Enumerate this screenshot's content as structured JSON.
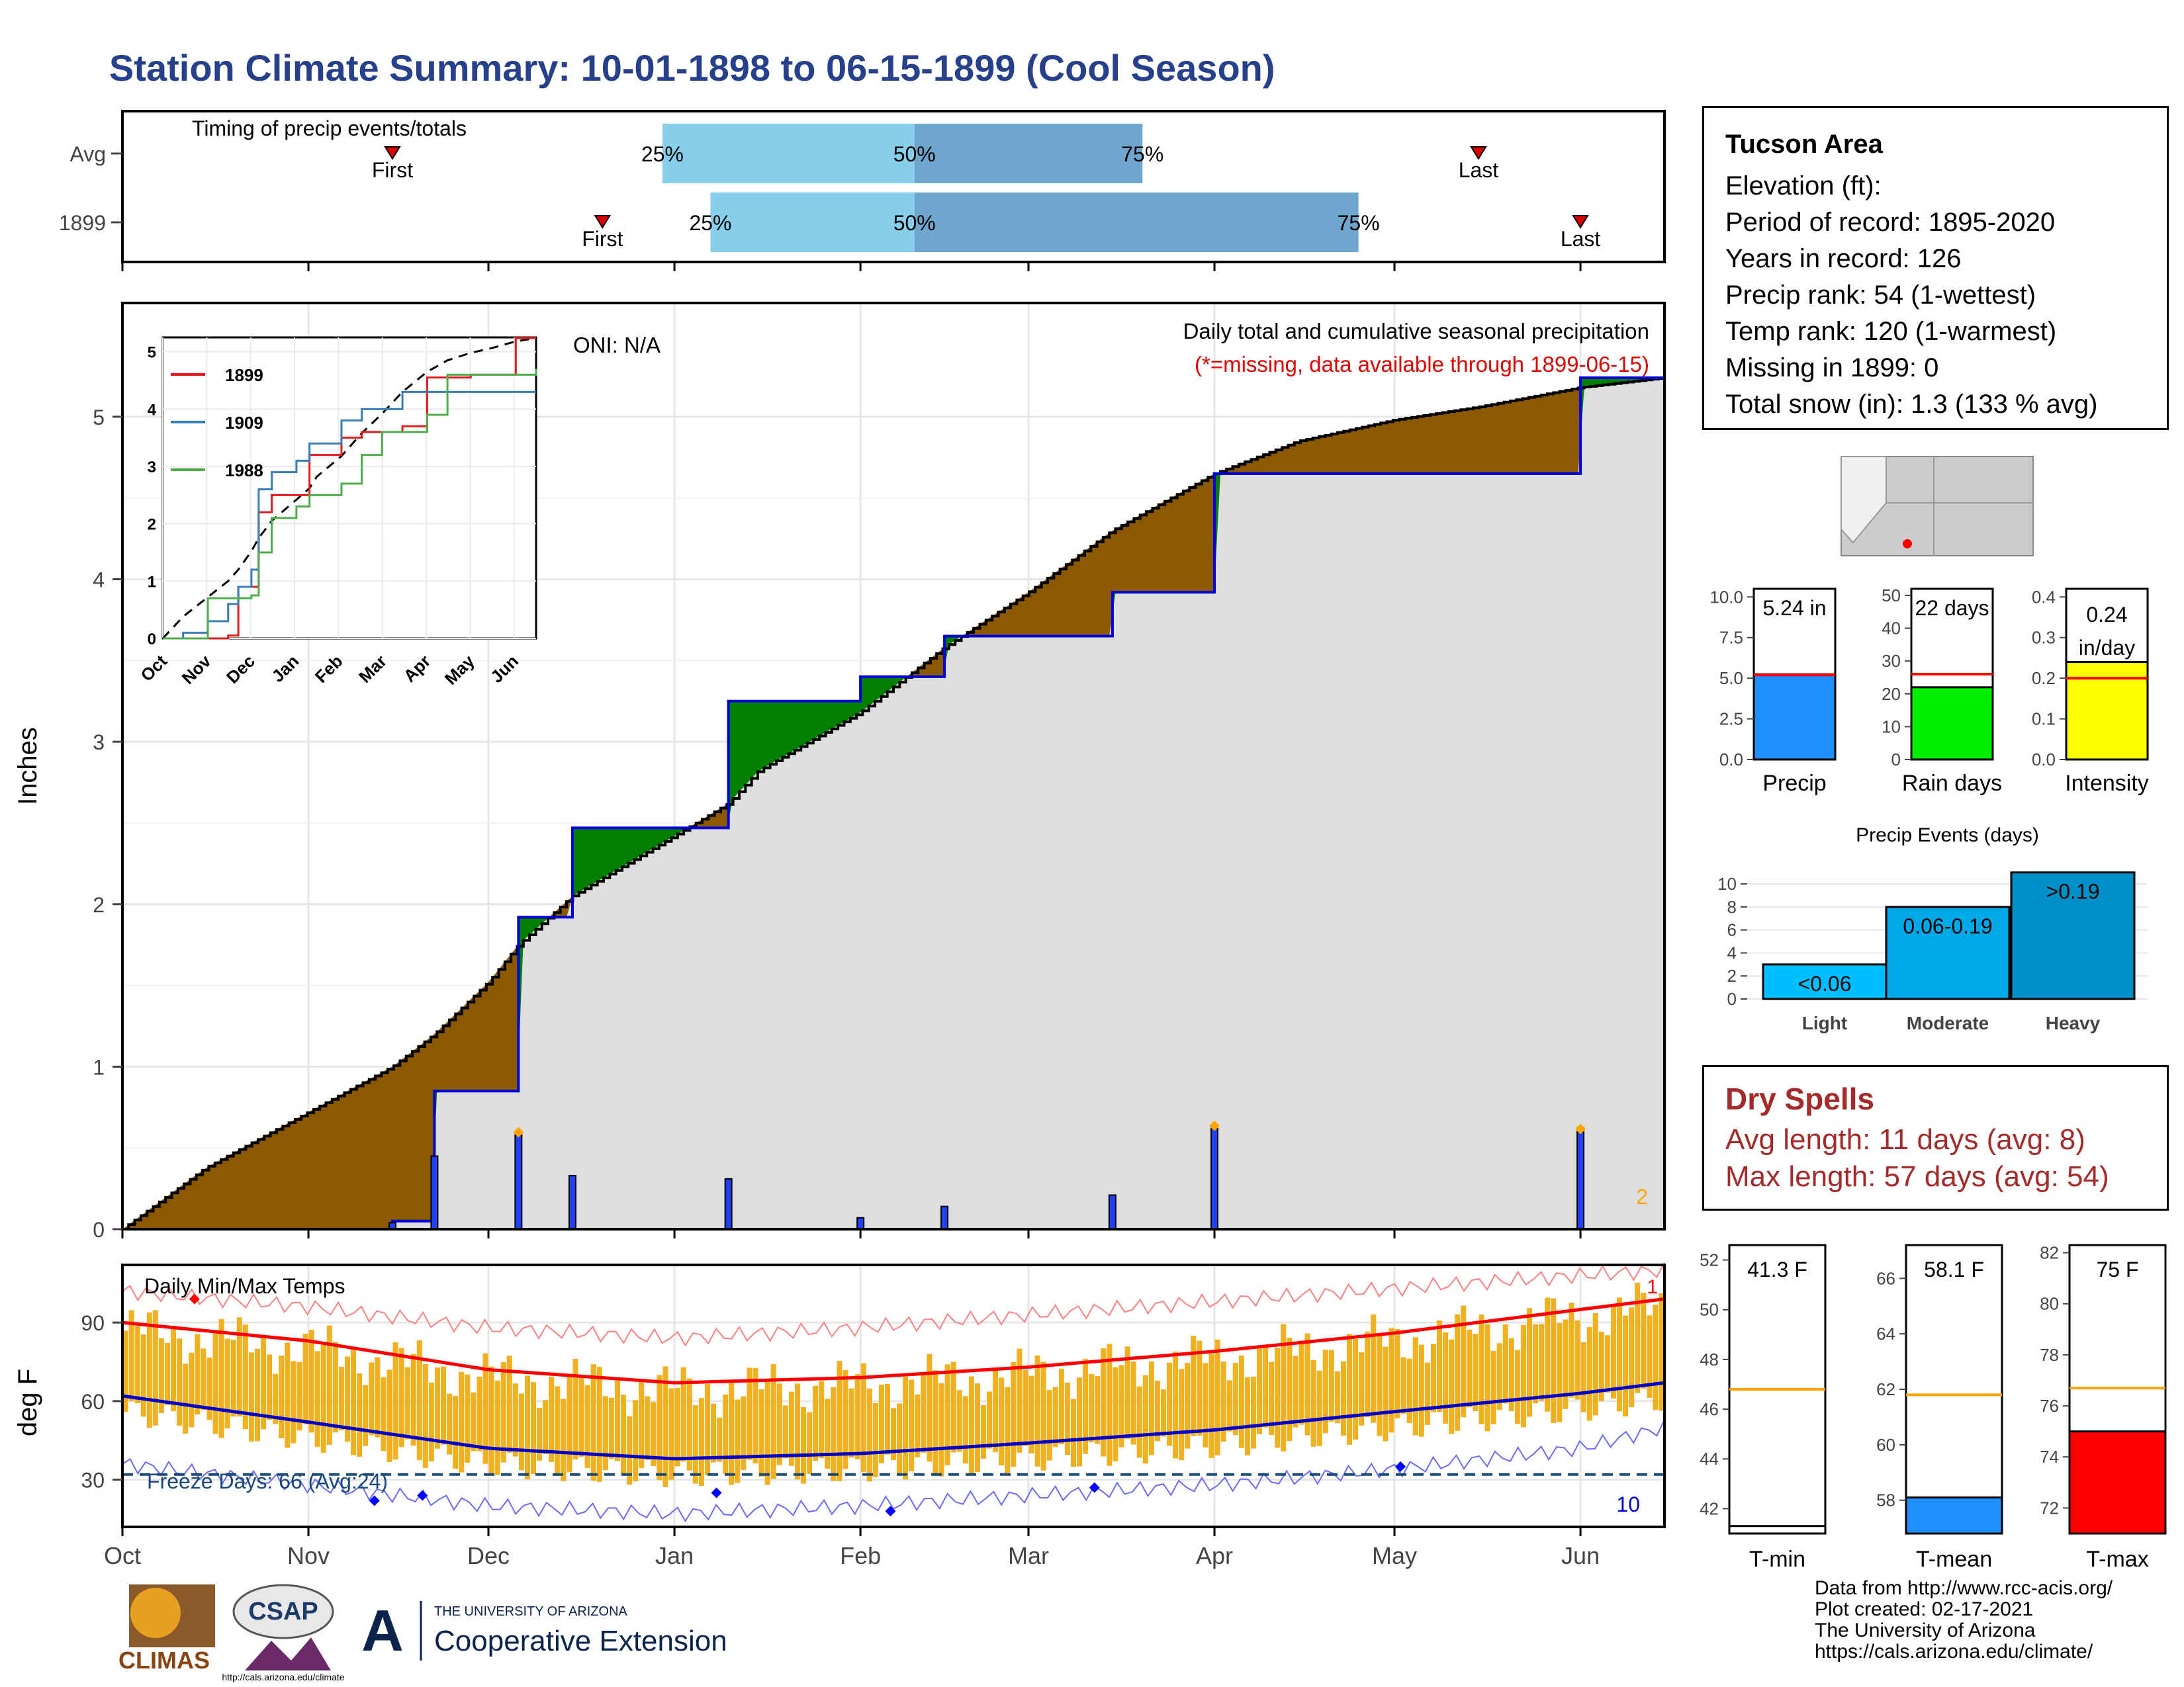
{
  "title": "Station Climate Summary: 10-01-1898 to 06-15-1899 (Cool Season)",
  "timing": {
    "label": "Timing of precip events/totals",
    "rows": [
      {
        "name": "Avg",
        "first": "First",
        "last": "Last",
        "p25": "25%",
        "p50": "50%",
        "p75": "75%"
      },
      {
        "name": "1899",
        "first": "First",
        "last": "Last",
        "p25": "25%",
        "p50": "50%",
        "p75": "75%"
      }
    ]
  },
  "station": {
    "name": "Tucson Area",
    "lines": [
      "Elevation (ft):",
      "Period of record: 1895-2020",
      "Years in record: 126",
      "Precip rank: 54 (1-wettest)",
      "Temp rank: 120 (1-warmest)",
      "Missing in 1899: 0",
      "Total snow (in): 1.3 (133 % avg)"
    ]
  },
  "precip_panel": {
    "ylabel": "Inches",
    "yticks": [
      "0",
      "1",
      "2",
      "3",
      "4",
      "5"
    ],
    "oni": "ONI: N/A",
    "legend_title": "Daily total and cumulative seasonal precipitation",
    "missing_note": "(*=missing, data available through 1899-06-15)",
    "corner_count": "2"
  },
  "inset": {
    "series": [
      "1899",
      "1909",
      "1988"
    ],
    "colors": [
      "#e41a1c",
      "#377eb8",
      "#4daf4a"
    ],
    "yticks": [
      "0",
      "1",
      "2",
      "3",
      "4",
      "5"
    ],
    "months": [
      "Oct",
      "Nov",
      "Dec",
      "Jan",
      "Feb",
      "Mar",
      "Apr",
      "May",
      "Jun"
    ]
  },
  "temp_panel": {
    "label": "Daily Min/Max Temps",
    "ylabel": "deg F",
    "yticks": [
      "30",
      "60",
      "90"
    ],
    "freeze": "Freeze Days: 66 (Avg:24)",
    "count_top": "1",
    "count_bottom": "10"
  },
  "months": [
    "Oct",
    "Nov",
    "Dec",
    "Jan",
    "Feb",
    "Mar",
    "Apr",
    "May",
    "Jun"
  ],
  "mini_bars": [
    {
      "value_label": "5.24 in",
      "name": "Precip",
      "ticks": [
        "0.0",
        "2.5",
        "5.0",
        "7.5",
        "10.0"
      ],
      "color": "#1e90ff"
    },
    {
      "value_label": "22 days",
      "name": "Rain days",
      "ticks": [
        "0",
        "10",
        "20",
        "30",
        "40",
        "50"
      ],
      "color": "#00ee00"
    },
    {
      "value_label": "0.24 in/day",
      "name": "Intensity",
      "ticks": [
        "0.0",
        "0.1",
        "0.2",
        "0.3",
        "0.4"
      ],
      "color": "#ffff00"
    }
  ],
  "events": {
    "title": "Precip Events (days)",
    "ticks": [
      "0",
      "2",
      "4",
      "6",
      "8",
      "10"
    ],
    "bars": [
      {
        "label": "<0.06",
        "name": "Light",
        "color": "#00bfff"
      },
      {
        "label": "0.06-0.19",
        "name": "Moderate",
        "color": "#00a8e8"
      },
      {
        "label": ">0.19",
        "name": "Heavy",
        "color": "#0090c8"
      }
    ]
  },
  "dry_spells": {
    "title": "Dry Spells",
    "avg": "Avg length: 11 days (avg: 8)",
    "max": "Max length: 57 days (avg: 54)"
  },
  "temp_bars": [
    {
      "value_label": "41.3 F",
      "name": "T-min",
      "ticks": [
        "42",
        "44",
        "46",
        "48",
        "50",
        "52"
      ],
      "color": "#ffffff"
    },
    {
      "value_label": "58.1 F",
      "name": "T-mean",
      "ticks": [
        "58",
        "60",
        "62",
        "64",
        "66"
      ],
      "color": "#1e90ff"
    },
    {
      "value_label": "75 F",
      "name": "T-max",
      "ticks": [
        "72",
        "74",
        "76",
        "78",
        "80",
        "82"
      ],
      "color": "#ff0000"
    }
  ],
  "logos": {
    "climas": "CLIMAS",
    "csap": "CSAP",
    "csap_url": "http://cals.arizona.edu/climate",
    "ua_top": "THE UNIVERSITY OF ARIZONA",
    "ua_main": "Cooperative Extension"
  },
  "credits": [
    "Data from http://www.rcc-acis.org/",
    "Plot created: 02-17-2021",
    "The University of Arizona",
    "https://cals.arizona.edu/climate/"
  ],
  "chart_data": [
    {
      "type": "bar",
      "title": "Timing of precip events/totals",
      "categories": [
        "Avg",
        "1899"
      ],
      "series": [
        {
          "name": "First",
          "values": [
            "1898-11-15",
            "1898-12-20"
          ]
        },
        {
          "name": "25%",
          "values": [
            "1898-12-30",
            "1899-01-07"
          ]
        },
        {
          "name": "50%",
          "values": [
            "1899-02-10",
            "1899-02-10"
          ]
        },
        {
          "name": "75%",
          "values": [
            "1899-03-20",
            "1899-04-25"
          ]
        },
        {
          "name": "Last",
          "values": [
            "1899-05-15",
            "1899-06-01"
          ]
        }
      ]
    },
    {
      "type": "area",
      "title": "Daily total and cumulative seasonal precipitation",
      "ylabel": "Inches",
      "ylim": [
        0,
        5.7
      ],
      "x": [
        "1898-10-01",
        "1898-10-15",
        "1898-11-01",
        "1898-11-15",
        "1898-11-22",
        "1898-12-01",
        "1898-12-06",
        "1898-12-15",
        "1899-01-01",
        "1899-01-10",
        "1899-01-15",
        "1899-02-01",
        "1899-02-15",
        "1899-03-01",
        "1899-03-15",
        "1899-04-01",
        "1899-04-15",
        "1899-05-01",
        "1899-05-15",
        "1899-06-01",
        "1899-06-15"
      ],
      "series": [
        {
          "name": "Average cumulative",
          "values": [
            0.0,
            0.38,
            0.72,
            1.0,
            1.2,
            1.52,
            1.75,
            2.05,
            2.42,
            2.62,
            2.82,
            3.18,
            3.58,
            3.92,
            4.3,
            4.65,
            4.85,
            4.98,
            5.06,
            5.18,
            5.24
          ]
        },
        {
          "name": "1899 cumulative",
          "values": [
            0.0,
            0.0,
            0.0,
            0.05,
            0.85,
            0.85,
            1.92,
            2.47,
            2.47,
            3.25,
            3.25,
            3.4,
            3.65,
            3.65,
            3.92,
            4.65,
            4.65,
            4.65,
            4.65,
            5.24,
            5.24
          ]
        },
        {
          "name": "1899 daily",
          "values": [
            0.0,
            0.0,
            0.0,
            0.04,
            0.45,
            0.0,
            0.58,
            0.33,
            0.0,
            0.31,
            0.0,
            0.07,
            0.14,
            0.0,
            0.21,
            0.62,
            0.0,
            0.0,
            0.0,
            0.6,
            0.0
          ]
        }
      ]
    },
    {
      "type": "line",
      "title": "Daily Min/Max Temps",
      "ylabel": "deg F",
      "ylim": [
        12,
        112
      ],
      "x": [
        "1898-10-01",
        "1898-11-01",
        "1898-12-01",
        "1899-01-01",
        "1899-02-01",
        "1899-03-01",
        "1899-04-01",
        "1899-05-01",
        "1899-06-01",
        "1899-06-15"
      ],
      "series": [
        {
          "name": "Avg max",
          "values": [
            90,
            83,
            72,
            67,
            69,
            73,
            79,
            86,
            95,
            99
          ]
        },
        {
          "name": "Avg min",
          "values": [
            62,
            52,
            42,
            38,
            40,
            44,
            49,
            56,
            63,
            67
          ]
        },
        {
          "name": "Record max",
          "values": [
            102,
            96,
            88,
            84,
            88,
            93,
            98,
            103,
            108,
            110
          ]
        },
        {
          "name": "Record min",
          "values": [
            36,
            28,
            20,
            17,
            20,
            24,
            28,
            34,
            42,
            50
          ]
        }
      ],
      "freeze_line": 32
    },
    {
      "type": "bar",
      "categories": [
        "Precip",
        "Rain days",
        "Intensity"
      ],
      "series": [
        {
          "name": "1899",
          "values": [
            5.24,
            22,
            0.24
          ]
        },
        {
          "name": "Avg",
          "values": [
            5.2,
            26,
            0.2
          ]
        }
      ]
    },
    {
      "type": "bar",
      "title": "Precip Events (days)",
      "categories": [
        "Light",
        "Moderate",
        "Heavy"
      ],
      "values": [
        3,
        8,
        11
      ]
    },
    {
      "type": "bar",
      "categories": [
        "T-min",
        "T-mean",
        "T-max"
      ],
      "series": [
        {
          "name": "1899",
          "values": [
            41.3,
            58.1,
            75
          ]
        },
        {
          "name": "Avg",
          "values": [
            46.8,
            61.8,
            76.7
          ]
        }
      ]
    }
  ]
}
